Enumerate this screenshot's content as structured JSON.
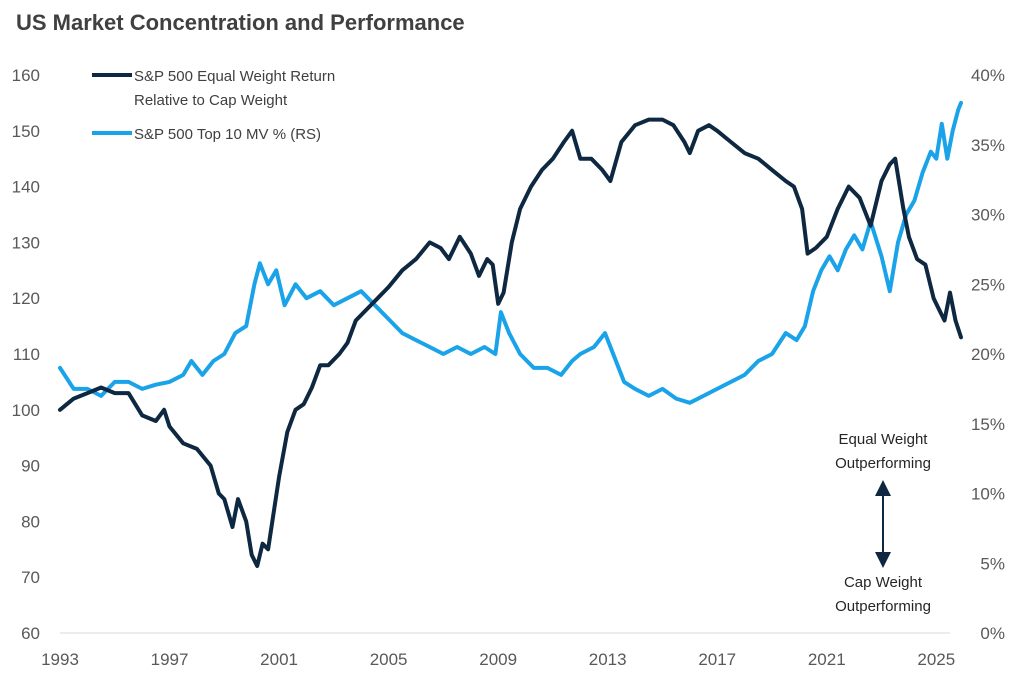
{
  "chart_data": {
    "type": "line",
    "title": "US Market Concentration and Performance",
    "x_ticks": [
      "1993",
      "1997",
      "2001",
      "2005",
      "2009",
      "2013",
      "2017",
      "2021",
      "2025"
    ],
    "y_left_ticks": [
      "60",
      "70",
      "80",
      "90",
      "100",
      "110",
      "120",
      "130",
      "140",
      "150",
      "160"
    ],
    "y_right_ticks": [
      "0%",
      "5%",
      "10%",
      "15%",
      "20%",
      "25%",
      "30%",
      "35%",
      "40%"
    ],
    "y_left_range": [
      60,
      160
    ],
    "y_right_range": [
      0,
      40
    ],
    "x_range": [
      1993,
      2025.5
    ],
    "legend_position": "top-left",
    "grid": false,
    "series": [
      {
        "name_lines": [
          "S&P 500 Equal Weight Return",
          "Relative to Cap Weight"
        ],
        "axis": "left",
        "color": "#0e2841",
        "points": [
          [
            1993.0,
            100
          ],
          [
            1993.5,
            102
          ],
          [
            1994.0,
            103
          ],
          [
            1994.5,
            104
          ],
          [
            1995.0,
            103
          ],
          [
            1995.5,
            103
          ],
          [
            1996.0,
            99
          ],
          [
            1996.5,
            98
          ],
          [
            1996.8,
            100
          ],
          [
            1997.0,
            97
          ],
          [
            1997.5,
            94
          ],
          [
            1998.0,
            93
          ],
          [
            1998.5,
            90
          ],
          [
            1998.8,
            85
          ],
          [
            1999.0,
            84
          ],
          [
            1999.3,
            79
          ],
          [
            1999.5,
            84
          ],
          [
            1999.8,
            80
          ],
          [
            2000.0,
            74
          ],
          [
            2000.2,
            72
          ],
          [
            2000.4,
            76
          ],
          [
            2000.6,
            75
          ],
          [
            2001.0,
            88
          ],
          [
            2001.3,
            96
          ],
          [
            2001.6,
            100
          ],
          [
            2001.9,
            101
          ],
          [
            2002.2,
            104
          ],
          [
            2002.5,
            108
          ],
          [
            2002.8,
            108
          ],
          [
            2003.2,
            110
          ],
          [
            2003.5,
            112
          ],
          [
            2003.8,
            116
          ],
          [
            2004.2,
            118
          ],
          [
            2004.6,
            120
          ],
          [
            2005.0,
            122
          ],
          [
            2005.5,
            125
          ],
          [
            2006.0,
            127
          ],
          [
            2006.5,
            130
          ],
          [
            2006.9,
            129
          ],
          [
            2007.2,
            127
          ],
          [
            2007.6,
            131
          ],
          [
            2008.0,
            128
          ],
          [
            2008.3,
            124
          ],
          [
            2008.6,
            127
          ],
          [
            2008.8,
            126
          ],
          [
            2009.0,
            119
          ],
          [
            2009.2,
            121
          ],
          [
            2009.5,
            130
          ],
          [
            2009.8,
            136
          ],
          [
            2010.2,
            140
          ],
          [
            2010.6,
            143
          ],
          [
            2011.0,
            145
          ],
          [
            2011.4,
            148
          ],
          [
            2011.7,
            150
          ],
          [
            2012.0,
            145
          ],
          [
            2012.4,
            145
          ],
          [
            2012.8,
            143
          ],
          [
            2013.1,
            141
          ],
          [
            2013.5,
            148
          ],
          [
            2014.0,
            151
          ],
          [
            2014.5,
            152
          ],
          [
            2015.0,
            152
          ],
          [
            2015.4,
            151
          ],
          [
            2015.8,
            148
          ],
          [
            2016.0,
            146
          ],
          [
            2016.3,
            150
          ],
          [
            2016.7,
            151
          ],
          [
            2017.0,
            150
          ],
          [
            2017.5,
            148
          ],
          [
            2018.0,
            146
          ],
          [
            2018.5,
            145
          ],
          [
            2019.0,
            143
          ],
          [
            2019.5,
            141
          ],
          [
            2019.8,
            140
          ],
          [
            2020.1,
            136
          ],
          [
            2020.3,
            128
          ],
          [
            2020.6,
            129
          ],
          [
            2021.0,
            131
          ],
          [
            2021.4,
            136
          ],
          [
            2021.8,
            140
          ],
          [
            2022.2,
            138
          ],
          [
            2022.6,
            133
          ],
          [
            2023.0,
            141
          ],
          [
            2023.3,
            144
          ],
          [
            2023.5,
            145
          ],
          [
            2023.8,
            136
          ],
          [
            2024.0,
            131
          ],
          [
            2024.3,
            127
          ],
          [
            2024.6,
            126
          ],
          [
            2024.9,
            120
          ],
          [
            2025.1,
            118
          ],
          [
            2025.3,
            116
          ],
          [
            2025.5,
            121
          ],
          [
            2025.7,
            116
          ],
          [
            2025.9,
            113
          ]
        ]
      },
      {
        "name_lines": [
          "S&P 500 Top 10 MV % (RS)"
        ],
        "axis": "right",
        "color": "#1aa3e8",
        "points": [
          [
            1993.0,
            19.0
          ],
          [
            1993.5,
            17.5
          ],
          [
            1994.0,
            17.5
          ],
          [
            1994.5,
            17.0
          ],
          [
            1995.0,
            18.0
          ],
          [
            1995.5,
            18.0
          ],
          [
            1996.0,
            17.5
          ],
          [
            1996.5,
            17.8
          ],
          [
            1997.0,
            18.0
          ],
          [
            1997.5,
            18.5
          ],
          [
            1997.8,
            19.5
          ],
          [
            1998.2,
            18.5
          ],
          [
            1998.6,
            19.5
          ],
          [
            1999.0,
            20.0
          ],
          [
            1999.4,
            21.5
          ],
          [
            1999.8,
            22.0
          ],
          [
            2000.1,
            25.0
          ],
          [
            2000.3,
            26.5
          ],
          [
            2000.6,
            25.0
          ],
          [
            2000.9,
            26.0
          ],
          [
            2001.2,
            23.5
          ],
          [
            2001.6,
            25.0
          ],
          [
            2002.0,
            24.0
          ],
          [
            2002.5,
            24.5
          ],
          [
            2003.0,
            23.5
          ],
          [
            2003.5,
            24.0
          ],
          [
            2004.0,
            24.5
          ],
          [
            2004.5,
            23.5
          ],
          [
            2005.0,
            22.5
          ],
          [
            2005.5,
            21.5
          ],
          [
            2006.0,
            21.0
          ],
          [
            2006.5,
            20.5
          ],
          [
            2007.0,
            20.0
          ],
          [
            2007.5,
            20.5
          ],
          [
            2008.0,
            20.0
          ],
          [
            2008.5,
            20.5
          ],
          [
            2008.9,
            20.0
          ],
          [
            2009.1,
            23.0
          ],
          [
            2009.4,
            21.5
          ],
          [
            2009.8,
            20.0
          ],
          [
            2010.3,
            19.0
          ],
          [
            2010.8,
            19.0
          ],
          [
            2011.3,
            18.5
          ],
          [
            2011.7,
            19.5
          ],
          [
            2012.0,
            20.0
          ],
          [
            2012.5,
            20.5
          ],
          [
            2012.9,
            21.5
          ],
          [
            2013.2,
            20.0
          ],
          [
            2013.6,
            18.0
          ],
          [
            2014.0,
            17.5
          ],
          [
            2014.5,
            17.0
          ],
          [
            2015.0,
            17.5
          ],
          [
            2015.5,
            16.8
          ],
          [
            2016.0,
            16.5
          ],
          [
            2016.5,
            17.0
          ],
          [
            2017.0,
            17.5
          ],
          [
            2017.5,
            18.0
          ],
          [
            2018.0,
            18.5
          ],
          [
            2018.5,
            19.5
          ],
          [
            2019.0,
            20.0
          ],
          [
            2019.5,
            21.5
          ],
          [
            2019.9,
            21.0
          ],
          [
            2020.2,
            22.0
          ],
          [
            2020.5,
            24.5
          ],
          [
            2020.8,
            26.0
          ],
          [
            2021.1,
            27.0
          ],
          [
            2021.4,
            26.0
          ],
          [
            2021.7,
            27.5
          ],
          [
            2022.0,
            28.5
          ],
          [
            2022.3,
            27.5
          ],
          [
            2022.6,
            29.5
          ],
          [
            2023.0,
            27.0
          ],
          [
            2023.3,
            24.5
          ],
          [
            2023.6,
            28.0
          ],
          [
            2023.9,
            30.0
          ],
          [
            2024.2,
            31.0
          ],
          [
            2024.5,
            33.0
          ],
          [
            2024.8,
            34.5
          ],
          [
            2025.0,
            34.0
          ],
          [
            2025.2,
            36.5
          ],
          [
            2025.4,
            34.0
          ],
          [
            2025.6,
            36.0
          ],
          [
            2025.8,
            37.5
          ],
          [
            2025.9,
            38.0
          ]
        ]
      }
    ],
    "annotations": [
      {
        "lines": [
          "Equal Weight",
          "Outperforming"
        ]
      },
      {
        "lines": [
          "Cap Weight",
          "Outperforming"
        ]
      }
    ]
  }
}
